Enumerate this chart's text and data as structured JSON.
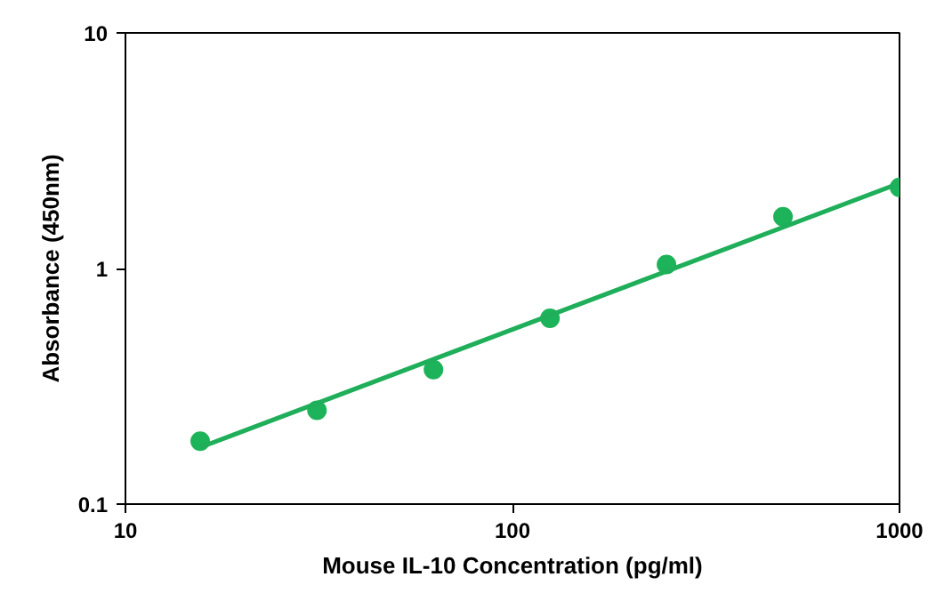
{
  "chart_data": {
    "type": "scatter",
    "xlabel": "Mouse IL-10 Concentration (pg/ml)",
    "ylabel": "Absorbance (450nm)",
    "log": "xy",
    "xlim": [
      10,
      1000
    ],
    "ylim": [
      0.1,
      10
    ],
    "xticks": [
      10,
      100,
      1000
    ],
    "yticks": [
      0.1,
      1,
      10
    ],
    "grid": false,
    "x": [
      15.6,
      31.25,
      62.5,
      125,
      250,
      500,
      1000
    ],
    "series": [
      {
        "color": "#1db35a",
        "marker": "circle",
        "values": [
          0.185,
          0.25,
          0.372,
          0.615,
          1.04,
          1.66,
          2.21
        ]
      },
      {
        "type": "line",
        "color": "#1fae5a",
        "line_style": "solid",
        "marker": "none",
        "x": [
          15.6,
          1000
        ],
        "values": [
          0.174,
          2.3
        ]
      }
    ]
  }
}
